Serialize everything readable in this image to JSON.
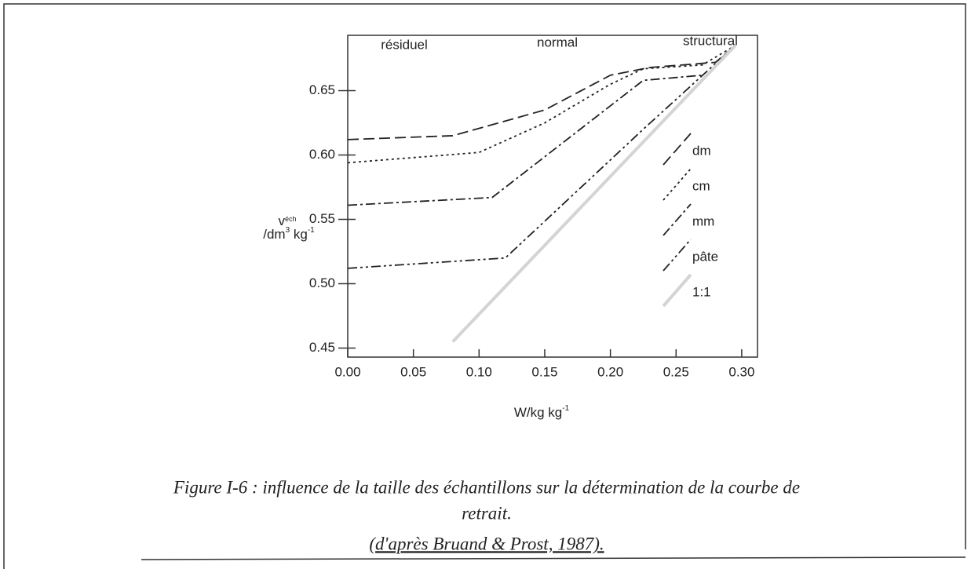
{
  "chart_data": {
    "type": "line",
    "region_labels": [
      "résiduel",
      "normal",
      "structural"
    ],
    "ylabel": {
      "symbol": "v",
      "subscript": "éch",
      "unit": "/dm",
      "unit_sup": "3",
      "unit2": " kg",
      "unit2_sup": "-1"
    },
    "xlabel": {
      "text": "W/kg kg",
      "sup": "-1"
    },
    "xlim": [
      0,
      0.312
    ],
    "ylim": [
      0.443,
      0.693
    ],
    "xticks": [
      {
        "value": 0,
        "label": "0.00"
      },
      0.05,
      {
        "value": 0.1,
        "label": "0.10"
      },
      0.15,
      {
        "value": 0.2,
        "label": "0.20"
      },
      0.25,
      {
        "value": 0.3,
        "label": "0.30"
      }
    ],
    "yticks": [
      0.45,
      {
        "value": 0.5,
        "label": "0.50"
      },
      0.55,
      {
        "value": 0.6,
        "label": "0.60"
      },
      0.65
    ],
    "series": [
      {
        "name": "dm",
        "color": "#222222",
        "dash": "14,6",
        "x": [
          0,
          0.08,
          0.15,
          0.2,
          0.23,
          0.28,
          0.295
        ],
        "values": [
          0.612,
          0.615,
          0.635,
          0.662,
          0.668,
          0.672,
          0.685
        ]
      },
      {
        "name": "cm",
        "color": "#222222",
        "dash": "3,4",
        "x": [
          0,
          0.1,
          0.15,
          0.2,
          0.225,
          0.27,
          0.295
        ],
        "values": [
          0.594,
          0.602,
          0.625,
          0.655,
          0.667,
          0.67,
          0.685
        ]
      },
      {
        "name": "mm",
        "color": "#222222",
        "dash": "12,4,3,4",
        "x": [
          0,
          0.11,
          0.225,
          0.27
        ],
        "values": [
          0.561,
          0.567,
          0.658,
          0.662
        ]
      },
      {
        "name": "pâte",
        "color": "#222222",
        "dash": "12,4,3,4,3,4",
        "x": [
          0,
          0.12,
          0.225,
          0.295
        ],
        "values": [
          0.512,
          0.52,
          0.62,
          0.685
        ]
      },
      {
        "name": "1:1",
        "color": "#d4d4d4",
        "dash": "none",
        "x": [
          0.08,
          0.295
        ],
        "values": [
          0.455,
          0.685
        ]
      }
    ],
    "caption": [
      "Figure I-6 : influence de la taille des échantillons sur la détermination de la courbe de",
      "retrait."
    ],
    "source": "(d'après Bruand & Prost, 1987)."
  }
}
